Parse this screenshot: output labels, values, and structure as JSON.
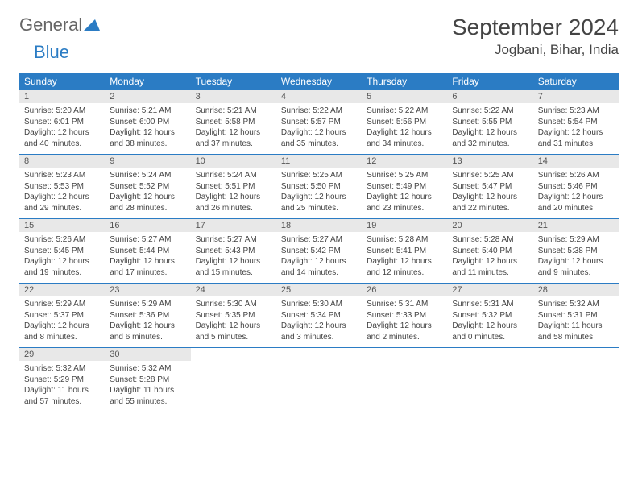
{
  "logo": {
    "part1": "General",
    "part2": "Blue"
  },
  "title": "September 2024",
  "location": "Jogbani, Bihar, India",
  "colors": {
    "header_bg": "#2b7cc4",
    "header_text": "#ffffff",
    "daynum_bg": "#e8e8e8",
    "border": "#2b7cc4",
    "logo_blue": "#2b7cc4",
    "logo_gray": "#666666",
    "text": "#444444"
  },
  "day_headers": [
    "Sunday",
    "Monday",
    "Tuesday",
    "Wednesday",
    "Thursday",
    "Friday",
    "Saturday"
  ],
  "weeks": [
    [
      {
        "n": "1",
        "sr": "Sunrise: 5:20 AM",
        "ss": "Sunset: 6:01 PM",
        "dl1": "Daylight: 12 hours",
        "dl2": "and 40 minutes."
      },
      {
        "n": "2",
        "sr": "Sunrise: 5:21 AM",
        "ss": "Sunset: 6:00 PM",
        "dl1": "Daylight: 12 hours",
        "dl2": "and 38 minutes."
      },
      {
        "n": "3",
        "sr": "Sunrise: 5:21 AM",
        "ss": "Sunset: 5:58 PM",
        "dl1": "Daylight: 12 hours",
        "dl2": "and 37 minutes."
      },
      {
        "n": "4",
        "sr": "Sunrise: 5:22 AM",
        "ss": "Sunset: 5:57 PM",
        "dl1": "Daylight: 12 hours",
        "dl2": "and 35 minutes."
      },
      {
        "n": "5",
        "sr": "Sunrise: 5:22 AM",
        "ss": "Sunset: 5:56 PM",
        "dl1": "Daylight: 12 hours",
        "dl2": "and 34 minutes."
      },
      {
        "n": "6",
        "sr": "Sunrise: 5:22 AM",
        "ss": "Sunset: 5:55 PM",
        "dl1": "Daylight: 12 hours",
        "dl2": "and 32 minutes."
      },
      {
        "n": "7",
        "sr": "Sunrise: 5:23 AM",
        "ss": "Sunset: 5:54 PM",
        "dl1": "Daylight: 12 hours",
        "dl2": "and 31 minutes."
      }
    ],
    [
      {
        "n": "8",
        "sr": "Sunrise: 5:23 AM",
        "ss": "Sunset: 5:53 PM",
        "dl1": "Daylight: 12 hours",
        "dl2": "and 29 minutes."
      },
      {
        "n": "9",
        "sr": "Sunrise: 5:24 AM",
        "ss": "Sunset: 5:52 PM",
        "dl1": "Daylight: 12 hours",
        "dl2": "and 28 minutes."
      },
      {
        "n": "10",
        "sr": "Sunrise: 5:24 AM",
        "ss": "Sunset: 5:51 PM",
        "dl1": "Daylight: 12 hours",
        "dl2": "and 26 minutes."
      },
      {
        "n": "11",
        "sr": "Sunrise: 5:25 AM",
        "ss": "Sunset: 5:50 PM",
        "dl1": "Daylight: 12 hours",
        "dl2": "and 25 minutes."
      },
      {
        "n": "12",
        "sr": "Sunrise: 5:25 AM",
        "ss": "Sunset: 5:49 PM",
        "dl1": "Daylight: 12 hours",
        "dl2": "and 23 minutes."
      },
      {
        "n": "13",
        "sr": "Sunrise: 5:25 AM",
        "ss": "Sunset: 5:47 PM",
        "dl1": "Daylight: 12 hours",
        "dl2": "and 22 minutes."
      },
      {
        "n": "14",
        "sr": "Sunrise: 5:26 AM",
        "ss": "Sunset: 5:46 PM",
        "dl1": "Daylight: 12 hours",
        "dl2": "and 20 minutes."
      }
    ],
    [
      {
        "n": "15",
        "sr": "Sunrise: 5:26 AM",
        "ss": "Sunset: 5:45 PM",
        "dl1": "Daylight: 12 hours",
        "dl2": "and 19 minutes."
      },
      {
        "n": "16",
        "sr": "Sunrise: 5:27 AM",
        "ss": "Sunset: 5:44 PM",
        "dl1": "Daylight: 12 hours",
        "dl2": "and 17 minutes."
      },
      {
        "n": "17",
        "sr": "Sunrise: 5:27 AM",
        "ss": "Sunset: 5:43 PM",
        "dl1": "Daylight: 12 hours",
        "dl2": "and 15 minutes."
      },
      {
        "n": "18",
        "sr": "Sunrise: 5:27 AM",
        "ss": "Sunset: 5:42 PM",
        "dl1": "Daylight: 12 hours",
        "dl2": "and 14 minutes."
      },
      {
        "n": "19",
        "sr": "Sunrise: 5:28 AM",
        "ss": "Sunset: 5:41 PM",
        "dl1": "Daylight: 12 hours",
        "dl2": "and 12 minutes."
      },
      {
        "n": "20",
        "sr": "Sunrise: 5:28 AM",
        "ss": "Sunset: 5:40 PM",
        "dl1": "Daylight: 12 hours",
        "dl2": "and 11 minutes."
      },
      {
        "n": "21",
        "sr": "Sunrise: 5:29 AM",
        "ss": "Sunset: 5:38 PM",
        "dl1": "Daylight: 12 hours",
        "dl2": "and 9 minutes."
      }
    ],
    [
      {
        "n": "22",
        "sr": "Sunrise: 5:29 AM",
        "ss": "Sunset: 5:37 PM",
        "dl1": "Daylight: 12 hours",
        "dl2": "and 8 minutes."
      },
      {
        "n": "23",
        "sr": "Sunrise: 5:29 AM",
        "ss": "Sunset: 5:36 PM",
        "dl1": "Daylight: 12 hours",
        "dl2": "and 6 minutes."
      },
      {
        "n": "24",
        "sr": "Sunrise: 5:30 AM",
        "ss": "Sunset: 5:35 PM",
        "dl1": "Daylight: 12 hours",
        "dl2": "and 5 minutes."
      },
      {
        "n": "25",
        "sr": "Sunrise: 5:30 AM",
        "ss": "Sunset: 5:34 PM",
        "dl1": "Daylight: 12 hours",
        "dl2": "and 3 minutes."
      },
      {
        "n": "26",
        "sr": "Sunrise: 5:31 AM",
        "ss": "Sunset: 5:33 PM",
        "dl1": "Daylight: 12 hours",
        "dl2": "and 2 minutes."
      },
      {
        "n": "27",
        "sr": "Sunrise: 5:31 AM",
        "ss": "Sunset: 5:32 PM",
        "dl1": "Daylight: 12 hours",
        "dl2": "and 0 minutes."
      },
      {
        "n": "28",
        "sr": "Sunrise: 5:32 AM",
        "ss": "Sunset: 5:31 PM",
        "dl1": "Daylight: 11 hours",
        "dl2": "and 58 minutes."
      }
    ],
    [
      {
        "n": "29",
        "sr": "Sunrise: 5:32 AM",
        "ss": "Sunset: 5:29 PM",
        "dl1": "Daylight: 11 hours",
        "dl2": "and 57 minutes."
      },
      {
        "n": "30",
        "sr": "Sunrise: 5:32 AM",
        "ss": "Sunset: 5:28 PM",
        "dl1": "Daylight: 11 hours",
        "dl2": "and 55 minutes."
      },
      {
        "empty": true
      },
      {
        "empty": true
      },
      {
        "empty": true
      },
      {
        "empty": true
      },
      {
        "empty": true
      }
    ]
  ]
}
